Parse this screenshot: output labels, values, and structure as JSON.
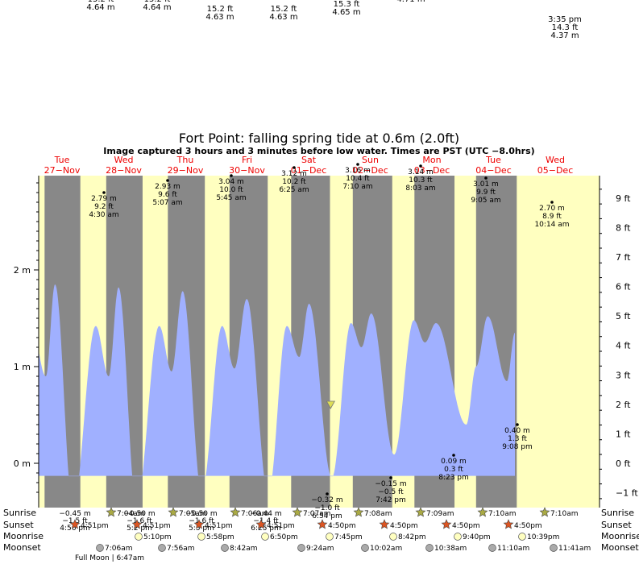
{
  "header": {
    "title": "Fort Point: falling  spring tide at 0.6m (2.0ft)",
    "subtitle": "Image captured 3 hours and 3 minutes before low water. Times are PST (UTC −8.0hrs)"
  },
  "top_fragments": [
    {
      "lines": [
        "15.2 ft",
        "4.64 m"
      ]
    },
    {
      "lines": [
        "15.2 ft",
        "4.64 m"
      ]
    },
    {
      "lines": [
        "15.2 ft",
        "4.63 m"
      ]
    },
    {
      "lines": [
        "15.2 ft",
        "4.63 m"
      ]
    },
    {
      "lines": [
        "15.3 ft",
        "4.65 m"
      ]
    },
    {
      "lines": [
        "4.71 m"
      ]
    },
    {
      "lines": [
        "3:35 pm",
        "14.3 ft",
        "4.37 m"
      ]
    }
  ],
  "days": [
    {
      "name": "Tue",
      "date": "27−Nov"
    },
    {
      "name": "Wed",
      "date": "28−Nov"
    },
    {
      "name": "Thu",
      "date": "29−Nov"
    },
    {
      "name": "Fri",
      "date": "30−Nov"
    },
    {
      "name": "Sat",
      "date": "01−Dec"
    },
    {
      "name": "Sun",
      "date": "02−Dec"
    },
    {
      "name": "Mon",
      "date": "03−Dec"
    },
    {
      "name": "Tue",
      "date": "04−Dec"
    },
    {
      "name": "Wed",
      "date": "05−Dec"
    }
  ],
  "colors": {
    "day": "#ffffc0",
    "night": "#888888",
    "water": "#a0b0ff",
    "date_text": "#ee0000",
    "sun_star": "#aaaa44",
    "sunset_star": "#dd5522",
    "moonrise_fill": "#ffffc0",
    "moonset_fill": "#aaaaaa",
    "marker": "#dddd55"
  },
  "chart_data": {
    "type": "area",
    "title": "Fort Point: falling  spring tide at 0.6m (2.0ft)",
    "x_unit": "days since 27-Nov 00:00 PST",
    "xlim": [
      0,
      8.35
    ],
    "left_axis": {
      "label_unit": "m",
      "ticks": [
        "−0 m",
        "0 m",
        "1 m",
        "2 m"
      ],
      "tick_values": [
        0,
        1,
        2
      ],
      "tick_text": [
        "0 m",
        "1 m",
        "2 m"
      ],
      "ylim": [
        -0.38,
        2.95
      ]
    },
    "right_axis": {
      "ticks": [
        "−1 ft",
        "0 ft",
        "1 ft",
        "2 ft",
        "3 ft",
        "4 ft",
        "5 ft",
        "6 ft",
        "7 ft",
        "8 ft",
        "9 ft"
      ],
      "tick_values": [
        -1,
        0,
        1,
        2,
        3,
        4,
        5,
        6,
        7,
        8,
        9
      ]
    },
    "extremes": [
      {
        "t": "27-Nov 08:00",
        "x": 0.33,
        "m": 1.42
      },
      {
        "t": "27-Nov 13:30",
        "x": 0.56,
        "m": 0.9
      },
      {
        "t": "27-Nov 17:00",
        "x": 0.71,
        "m": 1.85
      },
      {
        "t": "28-Nov 00:00",
        "x": 1.0,
        "m": -0.45
      },
      {
        "t": "28-Nov 08:50",
        "x": 1.37,
        "m": 1.42
      },
      {
        "t": "28-Nov 14:00",
        "x": 1.58,
        "m": 0.9
      },
      {
        "t": "28-Nov 17:50",
        "x": 1.74,
        "m": 1.82
      },
      {
        "t": "29-Nov 00:40",
        "x": 2.03,
        "m": -0.42
      },
      {
        "t": "29-Nov 09:35",
        "x": 2.4,
        "m": 1.42
      },
      {
        "t": "29-Nov 14:30",
        "x": 2.6,
        "m": 0.95
      },
      {
        "t": "29-Nov 18:40",
        "x": 2.78,
        "m": 1.78
      },
      {
        "t": "30-Nov 02:05",
        "x": 3.09,
        "m": -0.3
      },
      {
        "t": "30-Nov 10:10",
        "x": 3.42,
        "m": 1.42
      },
      {
        "t": "30-Nov 15:00",
        "x": 3.62,
        "m": 0.98
      },
      {
        "t": "30-Nov 19:35",
        "x": 3.82,
        "m": 1.7
      },
      {
        "t": "01-Dec 04:00",
        "x": 4.17,
        "m": -0.32
      },
      {
        "t": "01-Dec 11:15",
        "x": 4.47,
        "m": 1.42
      },
      {
        "t": "01-Dec 16:00",
        "x": 4.67,
        "m": 1.1
      },
      {
        "t": "01-Dec 19:50",
        "x": 4.83,
        "m": 1.65
      },
      {
        "t": "02-Dec 04:40",
        "x": 5.2,
        "m": -0.15
      },
      {
        "t": "02-Dec 12:10",
        "x": 5.51,
        "m": 1.45
      },
      {
        "t": "02-Dec 16:20",
        "x": 5.68,
        "m": 1.2
      },
      {
        "t": "02-Dec 20:15",
        "x": 5.84,
        "m": 1.55
      },
      {
        "t": "03-Dec 05:00",
        "x": 6.21,
        "m": 0.09
      },
      {
        "t": "03-Dec 12:40",
        "x": 6.53,
        "m": 1.48
      },
      {
        "t": "03-Dec 17:00",
        "x": 6.71,
        "m": 1.25
      },
      {
        "t": "03-Dec 21:25",
        "x": 6.89,
        "m": 1.45
      },
      {
        "t": "04-Dec 09:08",
        "x": 7.38,
        "m": 0.4
      },
      {
        "t": "04-Dec 13:00",
        "x": 7.54,
        "m": 1.0
      },
      {
        "t": "04-Dec 17:35",
        "x": 7.73,
        "m": 1.52
      },
      {
        "t": "05-Dec 01:00",
        "x": 8.04,
        "m": 0.85
      },
      {
        "t": "05-Dec 04:00",
        "x": 8.17,
        "m": 1.35
      }
    ],
    "night_bands": [
      [
        0.54,
        1.12
      ],
      [
        1.54,
        2.13
      ],
      [
        2.54,
        3.14
      ],
      [
        3.54,
        4.16
      ],
      [
        4.54,
        5.17
      ],
      [
        5.54,
        6.18
      ],
      [
        6.54,
        7.19
      ],
      [
        7.54,
        8.2
      ]
    ],
    "current_marker": {
      "x": 4.2,
      "m": 0.6
    }
  },
  "peak_labels": [
    {
      "m": "2.79 m",
      "ft": "9.2 ft",
      "time": "4:30 am"
    },
    {
      "m": "2.93 m",
      "ft": "9.6 ft",
      "time": "5:07 am"
    },
    {
      "m": "3.04 m",
      "ft": "10.0 ft",
      "time": "5:45 am"
    },
    {
      "m": "3.12 m",
      "ft": "10.2 ft",
      "time": "6:25 am"
    },
    {
      "m": "3.16 m",
      "ft": "10.4 ft",
      "time": "7:10 am"
    },
    {
      "m": "3.14 m",
      "ft": "10.3 ft",
      "time": "8:03 am"
    },
    {
      "m": "3.01 m",
      "ft": "9.9 ft",
      "time": "9:05 am"
    },
    {
      "m": "2.70 m",
      "ft": "8.9 ft",
      "time": "10:14 am"
    }
  ],
  "low_labels": [
    {
      "m": "−0.32 m",
      "ft": "−1.0 ft",
      "time": "6:54 pm"
    },
    {
      "m": "−0.15 m",
      "ft": "−0.5 ft",
      "time": "7:42 pm"
    },
    {
      "m": "0.09 m",
      "ft": "0.3 ft",
      "time": "8:23 pm"
    },
    {
      "m": "0.40 m",
      "ft": "1.3 ft",
      "time": "9:08 pm"
    }
  ],
  "bottom_left_fragments": [
    {
      "lines": [
        "−0.45 m",
        "−1.5 ft",
        "4:56 pm"
      ]
    },
    {
      "lines": [
        "−0.50 m",
        "−1.6 ft",
        "5:2 pm"
      ]
    },
    {
      "lines": [
        "−0.50 m",
        "−1.6 ft",
        "5:5 pm"
      ]
    },
    {
      "lines": [
        "−0.44 m",
        "−1.4 ft",
        "6:25 pm"
      ]
    }
  ],
  "rows": {
    "labels": [
      "Sunrise",
      "Sunset",
      "Moonrise",
      "Moonset"
    ],
    "sunrise": [
      "7:04am",
      "7:05am",
      "7:06am",
      "7:07am",
      "7:08am",
      "7:09am",
      "7:10am",
      "7:10am"
    ],
    "sunset": [
      "4:51pm",
      "4:51pm",
      "4:51pm",
      "4:51pm",
      "4:50pm",
      "4:50pm",
      "4:50pm",
      "4:50pm"
    ],
    "moonrise": [
      "5:10pm",
      "5:58pm",
      "6:50pm",
      "7:45pm",
      "8:42pm",
      "9:40pm",
      "10:39pm"
    ],
    "moonset": [
      "7:06am",
      "7:56am",
      "8:42am",
      "9:24am",
      "10:02am",
      "10:38am",
      "11:10am",
      "11:41am"
    ],
    "full_moon": "Full Moon | 6:47am"
  }
}
